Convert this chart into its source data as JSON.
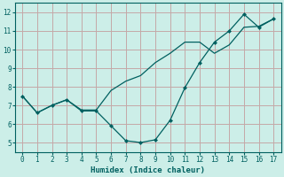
{
  "xlabel": "Humidex (Indice chaleur)",
  "background_color": "#cceee8",
  "plot_bg_color": "#cceee8",
  "grid_color": "#c4a8a8",
  "line_color": "#006060",
  "xlim": [
    -0.5,
    17.5
  ],
  "ylim": [
    4.5,
    12.5
  ],
  "xticks": [
    0,
    1,
    2,
    3,
    4,
    5,
    6,
    7,
    8,
    9,
    10,
    11,
    12,
    13,
    14,
    15,
    16,
    17
  ],
  "yticks": [
    5,
    6,
    7,
    8,
    9,
    10,
    11,
    12
  ],
  "series1_x": [
    0,
    1,
    2,
    3,
    4,
    5,
    6,
    7,
    8,
    9,
    10,
    11,
    12,
    13,
    14,
    15,
    16,
    17
  ],
  "series1_y": [
    7.5,
    6.6,
    7.0,
    7.3,
    6.75,
    6.75,
    7.8,
    8.3,
    8.6,
    9.3,
    9.8,
    10.4,
    10.4,
    9.8,
    10.25,
    11.2,
    11.25,
    11.65
  ],
  "series2_x": [
    0,
    1,
    2,
    3,
    4,
    5,
    6,
    7,
    8,
    9,
    10,
    11,
    12,
    13,
    14,
    15,
    16,
    17
  ],
  "series2_y": [
    7.5,
    6.6,
    7.0,
    7.3,
    6.7,
    6.7,
    5.9,
    5.1,
    5.0,
    5.15,
    6.2,
    7.95,
    9.3,
    10.4,
    11.0,
    11.9,
    11.2,
    11.65
  ]
}
